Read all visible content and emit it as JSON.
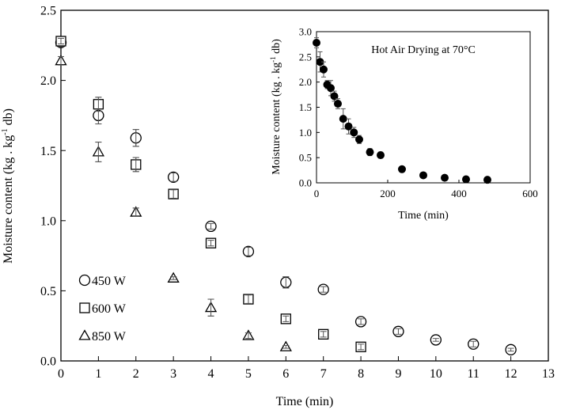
{
  "chart_data": [
    {
      "type": "scatter",
      "title": "",
      "xlabel": "Time (min)",
      "ylabel_base": "Moisture content (kg . kg",
      "ylabel_sup": "-1",
      "ylabel_tail": " db)",
      "xlim": [
        0,
        13
      ],
      "ylim": [
        0,
        2.5
      ],
      "xticks": [
        0,
        1,
        2,
        3,
        4,
        5,
        6,
        7,
        8,
        9,
        10,
        11,
        12,
        13
      ],
      "xtick_labels": [
        "0",
        "1",
        "2",
        "3",
        "4",
        "5",
        "6",
        "7",
        "8",
        "9",
        "10",
        "11",
        "12",
        "13"
      ],
      "yticks": [
        0,
        0.5,
        1,
        1.5,
        2,
        2.5
      ],
      "ytick_labels": [
        "0.0",
        "0.5",
        "1.0",
        "1.5",
        "2.0",
        "2.5"
      ],
      "legend_position": "lower-left",
      "series": [
        {
          "name": "450 W",
          "marker": "circle",
          "x": [
            0,
            1,
            2,
            3,
            4,
            5,
            6,
            7,
            8,
            9,
            10,
            11,
            12
          ],
          "y": [
            2.27,
            1.75,
            1.59,
            1.31,
            0.96,
            0.78,
            0.56,
            0.51,
            0.28,
            0.21,
            0.15,
            0.12,
            0.08
          ],
          "err": [
            0.03,
            0.06,
            0.06,
            0.03,
            0.02,
            0.03,
            0.04,
            0.02,
            0.02,
            0.02,
            0.01,
            0.02,
            0.01
          ]
        },
        {
          "name": "600 W",
          "marker": "square",
          "x": [
            0,
            1,
            2,
            3,
            4,
            5,
            6,
            7,
            8
          ],
          "y": [
            2.28,
            1.83,
            1.4,
            1.19,
            0.84,
            0.44,
            0.3,
            0.19,
            0.1
          ],
          "err": [
            0.02,
            0.05,
            0.05,
            0.03,
            0.02,
            0.03,
            0.02,
            0.02,
            0.02
          ]
        },
        {
          "name": "850 W",
          "marker": "triangle",
          "x": [
            0,
            1,
            2,
            3,
            4,
            5,
            6
          ],
          "y": [
            2.14,
            1.49,
            1.06,
            0.59,
            0.38,
            0.18,
            0.1
          ],
          "err": [
            0.03,
            0.07,
            0.03,
            0.01,
            0.06,
            0.02,
            0.01
          ]
        }
      ]
    },
    {
      "type": "scatter",
      "title": "Hot Air Drying at 70°C",
      "xlabel": "Time (min)",
      "ylabel_base": "Moisture content (kg . kg",
      "ylabel_sup": "-1",
      "ylabel_tail": " db)",
      "xlim": [
        0,
        600
      ],
      "ylim": [
        0,
        3
      ],
      "xticks": [
        0,
        200,
        400,
        600
      ],
      "xtick_labels": [
        "0",
        "200",
        "400",
        "600"
      ],
      "yticks": [
        0,
        0.5,
        1,
        1.5,
        2,
        2.5,
        3
      ],
      "ytick_labels": [
        "0.0",
        "0.5",
        "1.0",
        "1.5",
        "2.0",
        "2.5",
        "3.0"
      ],
      "series": [
        {
          "name": "Hot Air Drying at 70°C",
          "marker": "filled-circle",
          "x": [
            0,
            10,
            20,
            30,
            40,
            50,
            60,
            75,
            90,
            105,
            120,
            150,
            180,
            240,
            300,
            360,
            420,
            480
          ],
          "y": [
            2.78,
            2.4,
            2.25,
            1.95,
            1.88,
            1.72,
            1.57,
            1.27,
            1.12,
            1.0,
            0.86,
            0.61,
            0.55,
            0.27,
            0.15,
            0.1,
            0.07,
            0.06
          ],
          "err": [
            0.1,
            0.2,
            0.15,
            0.08,
            0.15,
            0.1,
            0.1,
            0.2,
            0.15,
            0.1,
            0.08,
            0.07,
            0.06,
            0.02,
            0.02,
            0.02,
            0.01,
            0.01
          ]
        }
      ]
    }
  ]
}
